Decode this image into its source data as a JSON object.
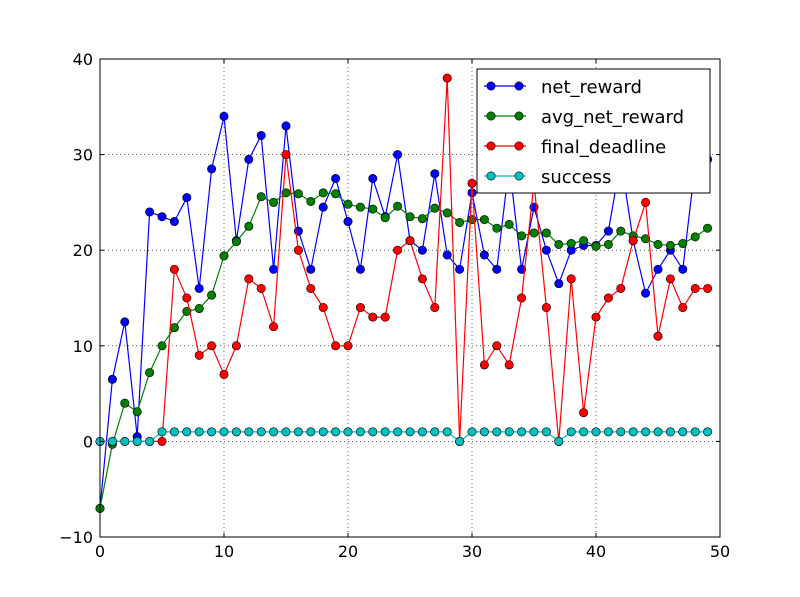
{
  "chart_data": {
    "type": "line",
    "title": "",
    "xlabel": "",
    "ylabel": "",
    "xlim": [
      0,
      50
    ],
    "ylim": [
      -10,
      40
    ],
    "xticks": [
      0,
      10,
      20,
      30,
      40,
      50
    ],
    "yticks": [
      -10,
      0,
      10,
      20,
      30,
      40
    ],
    "xtick_labels": [
      "0",
      "10",
      "20",
      "30",
      "40",
      "50"
    ],
    "ytick_labels": [
      "−10",
      "0",
      "10",
      "20",
      "30",
      "40"
    ],
    "grid": true,
    "legend_position": "top-right",
    "x": [
      0,
      1,
      2,
      3,
      4,
      5,
      6,
      7,
      8,
      9,
      10,
      11,
      12,
      13,
      14,
      15,
      16,
      17,
      18,
      19,
      20,
      21,
      22,
      23,
      24,
      25,
      26,
      27,
      28,
      29,
      30,
      31,
      32,
      33,
      34,
      35,
      36,
      37,
      38,
      39,
      40,
      41,
      42,
      43,
      44,
      45,
      46,
      47,
      48,
      49
    ],
    "series": [
      {
        "name": "net_reward",
        "color": "#0000ff",
        "values": [
          -7,
          6.5,
          12.5,
          0.5,
          24,
          23.5,
          23,
          25.5,
          16,
          28.5,
          34,
          21,
          29.5,
          32,
          18,
          33,
          22,
          18,
          24.5,
          27.5,
          23,
          18,
          27.5,
          23.5,
          30,
          21,
          20,
          28,
          19.5,
          18,
          26,
          19.5,
          18,
          29,
          18,
          24.5,
          20,
          16.5,
          20,
          20.5,
          20.5,
          22,
          29.5,
          21,
          15.5,
          18,
          20,
          18,
          29,
          29.5
        ]
      },
      {
        "name": "avg_net_reward",
        "color": "#008000",
        "values": [
          -7,
          -0.3,
          4,
          3.1,
          7.2,
          10,
          11.9,
          13.6,
          13.9,
          15.3,
          19.4,
          20.9,
          22.5,
          25.6,
          25,
          26,
          25.9,
          25.1,
          26,
          25.9,
          24.8,
          24.5,
          24.3,
          23.4,
          24.6,
          23.5,
          23.3,
          24.4,
          23.9,
          22.9,
          23.2,
          23.2,
          22.3,
          22.7,
          21.5,
          21.8,
          21.8,
          20.6,
          20.7,
          21,
          20.4,
          20.6,
          22,
          21.5,
          21.2,
          20.6,
          20.5,
          20.7,
          21.4,
          22.3
        ]
      },
      {
        "name": "final_deadline",
        "color": "#ff0000",
        "values": [
          0,
          0,
          0,
          0,
          0,
          0,
          18,
          15,
          9,
          10,
          7,
          10,
          17,
          16,
          12,
          30,
          20,
          16,
          14,
          10,
          10,
          14,
          13,
          13,
          20,
          21,
          17,
          14,
          38,
          0,
          27,
          8,
          10,
          8,
          15,
          27,
          14,
          0,
          17,
          3,
          13,
          15,
          16,
          21,
          25,
          11,
          17,
          14,
          16,
          16
        ]
      },
      {
        "name": "success",
        "color": "#00bfbf",
        "values": [
          0,
          0,
          0,
          0,
          0,
          1,
          1,
          1,
          1,
          1,
          1,
          1,
          1,
          1,
          1,
          1,
          1,
          1,
          1,
          1,
          1,
          1,
          1,
          1,
          1,
          1,
          1,
          1,
          1,
          0,
          1,
          1,
          1,
          1,
          1,
          1,
          1,
          0,
          1,
          1,
          1,
          1,
          1,
          1,
          1,
          1,
          1,
          1,
          1,
          1
        ]
      }
    ]
  }
}
